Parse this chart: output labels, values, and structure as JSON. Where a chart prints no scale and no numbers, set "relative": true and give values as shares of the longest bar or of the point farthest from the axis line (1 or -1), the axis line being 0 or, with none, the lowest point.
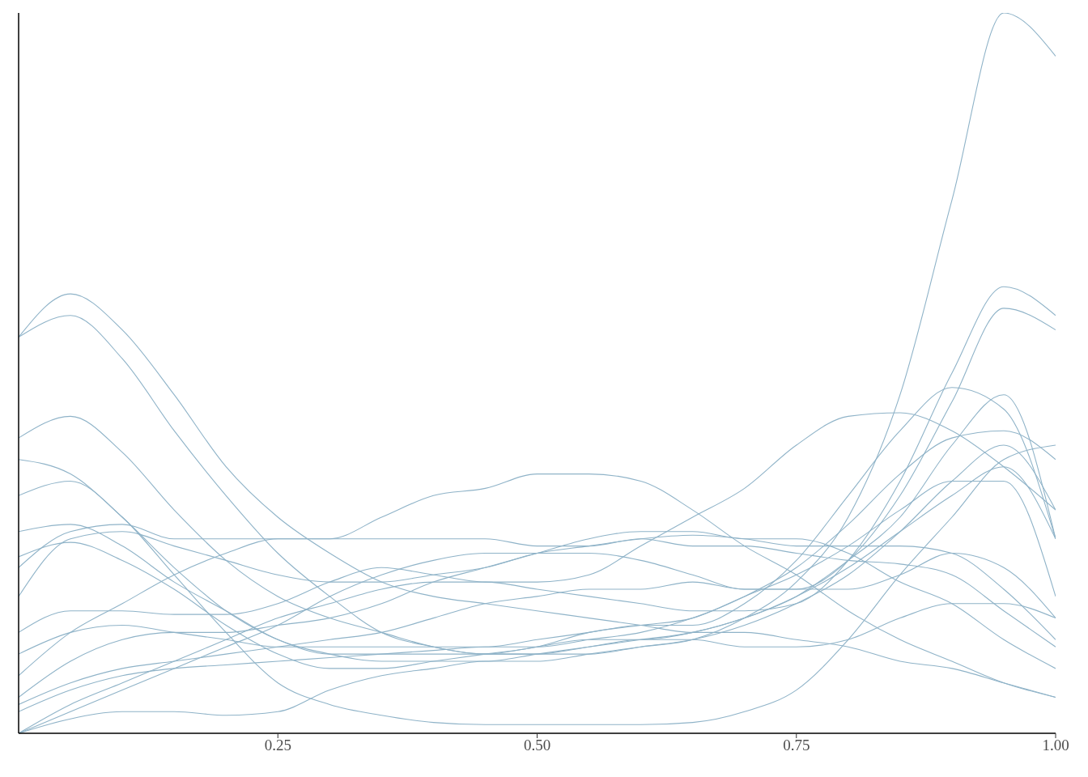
{
  "chart_data": {
    "type": "line",
    "relative": true,
    "x": [
      0,
      0.05,
      0.1,
      0.15,
      0.2,
      0.25,
      0.3,
      0.35,
      0.4,
      0.45,
      0.5,
      0.55,
      0.6,
      0.65,
      0.7,
      0.75,
      0.8,
      0.85,
      0.9,
      0.95,
      1
    ],
    "xlim": [
      0,
      1
    ],
    "xticks": [
      0.25,
      {
        "value": 0.5,
        "label": "0.50"
      },
      0.75,
      {
        "value": 1,
        "label": "1.00"
      }
    ],
    "grid": false,
    "marker": "none",
    "line_style": "solid",
    "series": [
      {
        "color": "#8fb3c8",
        "values": [
          0.55,
          0.61,
          0.56,
          0.47,
          0.37,
          0.3,
          0.25,
          0.21,
          0.19,
          0.18,
          0.17,
          0.16,
          0.15,
          0.14,
          0.14,
          0.13,
          0.12,
          0.1,
          0.09,
          0.07,
          0.05
        ]
      },
      {
        "color": "#8fb3c8",
        "values": [
          0.55,
          0.58,
          0.52,
          0.42,
          0.33,
          0.25,
          0.19,
          0.14,
          0.12,
          0.11,
          0.11,
          0.12,
          0.13,
          0.13,
          0.12,
          0.12,
          0.13,
          0.16,
          0.18,
          0.18,
          0.16
        ]
      },
      {
        "color": "#8fb3c8",
        "values": [
          0.41,
          0.44,
          0.39,
          0.31,
          0.24,
          0.19,
          0.16,
          0.14,
          0.12,
          0.11,
          0.11,
          0.11,
          0.12,
          0.13,
          0.15,
          0.18,
          0.22,
          0.28,
          0.35,
          0.4,
          0.31
        ]
      },
      {
        "color": "#8fb3c8",
        "values": [
          0.38,
          0.36,
          0.3,
          0.23,
          0.17,
          0.13,
          0.11,
          0.11,
          0.11,
          0.11,
          0.12,
          0.13,
          0.13,
          0.14,
          0.16,
          0.19,
          0.24,
          0.3,
          0.4,
          0.47,
          0.27
        ]
      },
      {
        "color": "#8fb3c8",
        "values": [
          0.33,
          0.35,
          0.3,
          0.22,
          0.14,
          0.07,
          0.04,
          0.025,
          0.015,
          0.012,
          0.012,
          0.012,
          0.012,
          0.015,
          0.03,
          0.06,
          0.13,
          0.22,
          0.3,
          0.38,
          0.4
        ]
      },
      {
        "color": "#8fb3c8",
        "values": [
          0.28,
          0.29,
          0.26,
          0.21,
          0.17,
          0.13,
          0.11,
          0.1,
          0.1,
          0.1,
          0.11,
          0.12,
          0.13,
          0.14,
          0.16,
          0.19,
          0.23,
          0.28,
          0.33,
          0.37,
          0.27
        ]
      },
      {
        "color": "#8fb3c8",
        "values": [
          0.245,
          0.265,
          0.24,
          0.2,
          0.15,
          0.11,
          0.09,
          0.09,
          0.1,
          0.11,
          0.12,
          0.14,
          0.15,
          0.16,
          0.19,
          0.22,
          0.26,
          0.31,
          0.35,
          0.35,
          0.19
        ]
      },
      {
        "color": "#8fb3c8",
        "values": [
          0.23,
          0.28,
          0.29,
          0.27,
          0.27,
          0.27,
          0.27,
          0.3,
          0.33,
          0.34,
          0.36,
          0.36,
          0.35,
          0.31,
          0.26,
          0.22,
          0.17,
          0.13,
          0.1,
          0.07,
          0.05
        ]
      },
      {
        "color": "#8fb3c8",
        "values": [
          0.19,
          0.27,
          0.28,
          0.26,
          0.24,
          0.22,
          0.21,
          0.21,
          0.22,
          0.23,
          0.25,
          0.26,
          0.27,
          0.275,
          0.27,
          0.26,
          0.26,
          0.26,
          0.25,
          0.2,
          0.13
        ]
      },
      {
        "color": "#8fb3c8",
        "values": [
          0.14,
          0.17,
          0.17,
          0.165,
          0.165,
          0.18,
          0.21,
          0.23,
          0.22,
          0.21,
          0.21,
          0.22,
          0.26,
          0.3,
          0.34,
          0.4,
          0.44,
          0.445,
          0.42,
          0.37,
          0.31
        ]
      },
      {
        "color": "#8fb3c8",
        "values": [
          0.11,
          0.14,
          0.15,
          0.14,
          0.13,
          0.12,
          0.12,
          0.12,
          0.12,
          0.12,
          0.13,
          0.14,
          0.15,
          0.15,
          0.18,
          0.24,
          0.33,
          0.42,
          0.48,
          0.45,
          0.27
        ]
      },
      {
        "color": "#8fb3c8",
        "values": [
          0.08,
          0.14,
          0.18,
          0.22,
          0.25,
          0.27,
          0.27,
          0.27,
          0.27,
          0.27,
          0.26,
          0.26,
          0.27,
          0.26,
          0.26,
          0.25,
          0.24,
          0.235,
          0.22,
          0.17,
          0.12
        ]
      },
      {
        "color": "#8fb3c8",
        "values": [
          0.05,
          0.1,
          0.13,
          0.14,
          0.14,
          0.15,
          0.16,
          0.18,
          0.21,
          0.23,
          0.25,
          0.27,
          0.28,
          0.28,
          0.27,
          0.27,
          0.25,
          0.21,
          0.18,
          0.13,
          0.09
        ]
      },
      {
        "color": "#8fb3c8",
        "values": [
          0.04,
          0.07,
          0.09,
          0.1,
          0.11,
          0.12,
          0.13,
          0.14,
          0.16,
          0.18,
          0.19,
          0.2,
          0.2,
          0.21,
          0.2,
          0.2,
          0.2,
          0.22,
          0.25,
          0.23,
          0.16
        ]
      },
      {
        "color": "#8fb3c8",
        "values": [
          0.03,
          0.06,
          0.08,
          0.09,
          0.095,
          0.1,
          0.105,
          0.11,
          0.115,
          0.12,
          0.12,
          0.13,
          0.14,
          0.16,
          0.19,
          0.23,
          0.29,
          0.36,
          0.41,
          0.42,
          0.38
        ]
      },
      {
        "color": "#8fb3c8",
        "values": [
          0,
          0.02,
          0.03,
          0.03,
          0.025,
          0.03,
          0.06,
          0.08,
          0.09,
          0.1,
          0.1,
          0.11,
          0.12,
          0.13,
          0.16,
          0.21,
          0.3,
          0.47,
          0.74,
          1,
          0.94
        ]
      },
      {
        "color": "#8fb3c8",
        "values": [
          0,
          0.04,
          0.07,
          0.1,
          0.13,
          0.16,
          0.18,
          0.2,
          0.21,
          0.21,
          0.2,
          0.19,
          0.18,
          0.17,
          0.17,
          0.18,
          0.24,
          0.35,
          0.5,
          0.62,
          0.58
        ]
      },
      {
        "color": "#8fb3c8",
        "values": [
          0,
          0.03,
          0.06,
          0.09,
          0.12,
          0.15,
          0.19,
          0.22,
          0.24,
          0.25,
          0.25,
          0.25,
          0.24,
          0.22,
          0.2,
          0.2,
          0.24,
          0.33,
          0.46,
          0.59,
          0.56
        ]
      }
    ]
  }
}
